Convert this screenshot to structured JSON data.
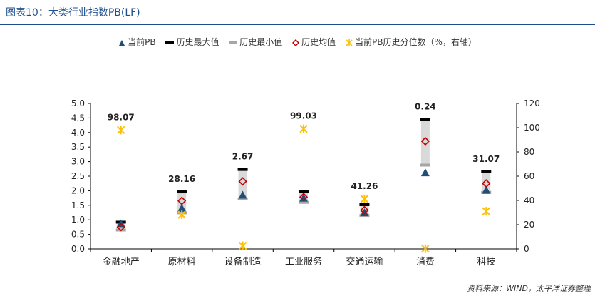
{
  "header": {
    "title": "图表10：大类行业指数PB(LF)"
  },
  "legend": {
    "items": [
      {
        "key": "current",
        "label": "当前PB",
        "icon": "triangle-up",
        "color": "#1f4e79"
      },
      {
        "key": "max",
        "label": "历史最大值",
        "icon": "dash",
        "color": "#000000"
      },
      {
        "key": "min",
        "label": "历史最小值",
        "icon": "dash",
        "color": "#a6a6a6"
      },
      {
        "key": "avg",
        "label": "历史均值",
        "icon": "diamond",
        "color": "#c00000"
      },
      {
        "key": "pct",
        "label": "当前PB历史分位数（%，右轴）",
        "icon": "asterisk",
        "color": "#ffc000"
      }
    ]
  },
  "chart_data": {
    "type": "scatter",
    "categories": [
      "金融地产",
      "原材料",
      "设备制造",
      "工业服务",
      "交通运输",
      "消费",
      "科技"
    ],
    "series": [
      {
        "name": "当前PB",
        "axis": "left",
        "values": [
          0.87,
          1.4,
          1.85,
          1.75,
          1.25,
          2.62,
          2.02
        ]
      },
      {
        "name": "历史最大值",
        "axis": "left",
        "values": [
          0.92,
          1.96,
          2.73,
          1.96,
          1.52,
          4.45,
          2.65
        ]
      },
      {
        "name": "历史最小值",
        "axis": "left",
        "values": [
          0.65,
          1.24,
          1.72,
          1.6,
          1.15,
          2.88,
          1.94
        ]
      },
      {
        "name": "历史均值",
        "axis": "left",
        "values": [
          0.75,
          1.65,
          2.32,
          1.78,
          1.33,
          3.7,
          2.25
        ]
      },
      {
        "name": "当前PB历史分位数（%，右轴）",
        "axis": "right",
        "values": [
          98.07,
          28.16,
          2.67,
          99.03,
          41.26,
          0.24,
          31.07
        ]
      }
    ],
    "data_labels": [
      "98.07",
      "28.16",
      "2.67",
      "99.03",
      "41.26",
      "0.24",
      "31.07"
    ],
    "y_ticks": [
      "0.0",
      "0.5",
      "1.0",
      "1.5",
      "2.0",
      "2.5",
      "3.0",
      "3.5",
      "4.0",
      "4.5",
      "5.0"
    ],
    "y2_ticks": [
      "0",
      "20",
      "40",
      "60",
      "80",
      "100",
      "120"
    ],
    "ylim": [
      0,
      5
    ],
    "y2lim": [
      0,
      120
    ],
    "grid": false,
    "legend_position": "top",
    "colors": {
      "current": "#1f4e79",
      "max": "#000000",
      "min": "#a6a6a6",
      "avg": "#c00000",
      "pct": "#ffc000",
      "range_band": "#d9d9d9"
    }
  },
  "footer": {
    "source": "资料来源：WIND，太平洋证券整理"
  }
}
